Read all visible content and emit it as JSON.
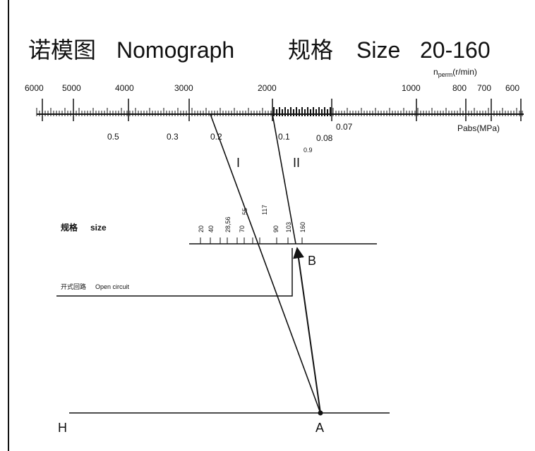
{
  "title": {
    "cn": "诺模图",
    "en": "Nomograph",
    "size_cn": "规格",
    "size_en": "Size",
    "size_range": "20-160"
  },
  "speed_scale": {
    "label": "n",
    "label_sub": "perm",
    "label_unit": "(r/min)",
    "ticks": [
      "6000",
      "5000",
      "4000",
      "3000",
      "2000",
      "1000",
      "800",
      "700",
      "600"
    ]
  },
  "pressure_scale": {
    "label": "Pabs(MPa)",
    "ticks": [
      "0.5",
      "0.3",
      "0.2",
      "0.1",
      "0.08",
      "0.07",
      "0.9"
    ]
  },
  "lines": {
    "line1": "I",
    "line2": "II"
  },
  "size_scale": {
    "label_cn": "规格",
    "label_en": "size",
    "values": [
      "20",
      "40",
      "28,56",
      "55",
      "70",
      "117",
      "90",
      "103",
      "160"
    ]
  },
  "open_circuit": {
    "cn": "开式回路",
    "en": "Open circuit"
  },
  "points": {
    "A": "A",
    "B": "B",
    "H": "H"
  },
  "colors": {
    "ink": "#111111",
    "background": "#ffffff"
  }
}
